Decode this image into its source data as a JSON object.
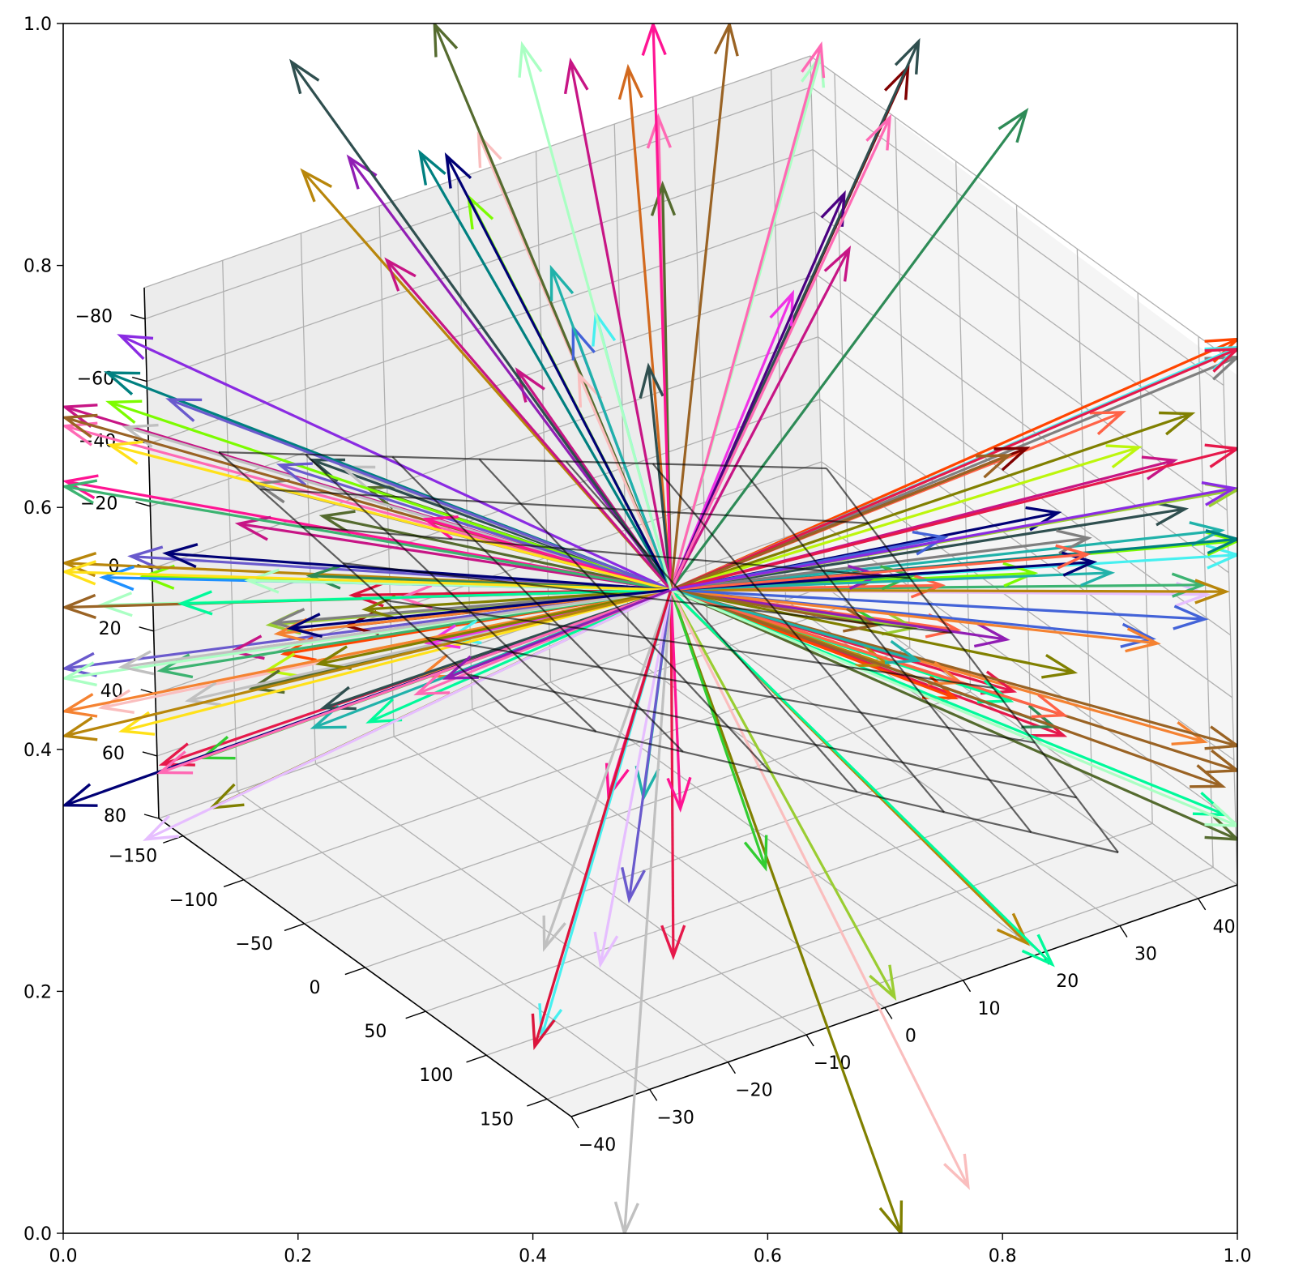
{
  "chart_data": {
    "type": "quiver3d",
    "outer_axes": {
      "xlim": [
        0.0,
        1.0
      ],
      "ylim": [
        0.0,
        1.0
      ],
      "xticks": [
        "0.0",
        "0.2",
        "0.4",
        "0.6",
        "0.8",
        "1.0"
      ],
      "yticks": [
        "0.0",
        "0.2",
        "0.4",
        "0.6",
        "0.8",
        "1.0"
      ]
    },
    "axis3d": {
      "x_range": [
        -170,
        170
      ],
      "y_range": [
        -40,
        45
      ],
      "z_range": [
        -90,
        80
      ],
      "x_ticks": [
        "−150",
        "−100",
        "−50",
        "0",
        "50",
        "100",
        "150"
      ],
      "y_ticks": [
        "−40",
        "−30",
        "−20",
        "−10",
        "0",
        "10",
        "20",
        "30",
        "40"
      ],
      "z_ticks": [
        "−80",
        "−60",
        "−40",
        "−20",
        "0",
        "20",
        "40",
        "60",
        "80"
      ],
      "z_inverted": true,
      "grid": true
    },
    "origin": [
      0,
      0,
      0
    ],
    "arrow_count": 170,
    "palette": [
      "#e6194b",
      "#3cb44b",
      "#ffe119",
      "#4363d8",
      "#f58231",
      "#911eb4",
      "#46f0f0",
      "#f032e6",
      "#bcf60c",
      "#fabebe",
      "#008080",
      "#e6beff",
      "#9a6324",
      "#800000",
      "#aaffc3",
      "#808000",
      "#000075",
      "#808080",
      "#2e8b57",
      "#c71585",
      "#ff4500",
      "#1e90ff",
      "#32cd32",
      "#8a2be2",
      "#d2691e",
      "#20b2aa",
      "#ff1493",
      "#7cfc00",
      "#b8860b",
      "#4b0082",
      "#dc143c",
      "#00fa9a",
      "#556b2f",
      "#ff69b4",
      "#6a5acd",
      "#ff6347",
      "#3cb371",
      "#9acd32",
      "#c0c0c0",
      "#2f4f4f"
    ],
    "mesh_color": "#000000",
    "mesh_opacity": 0.6
  }
}
